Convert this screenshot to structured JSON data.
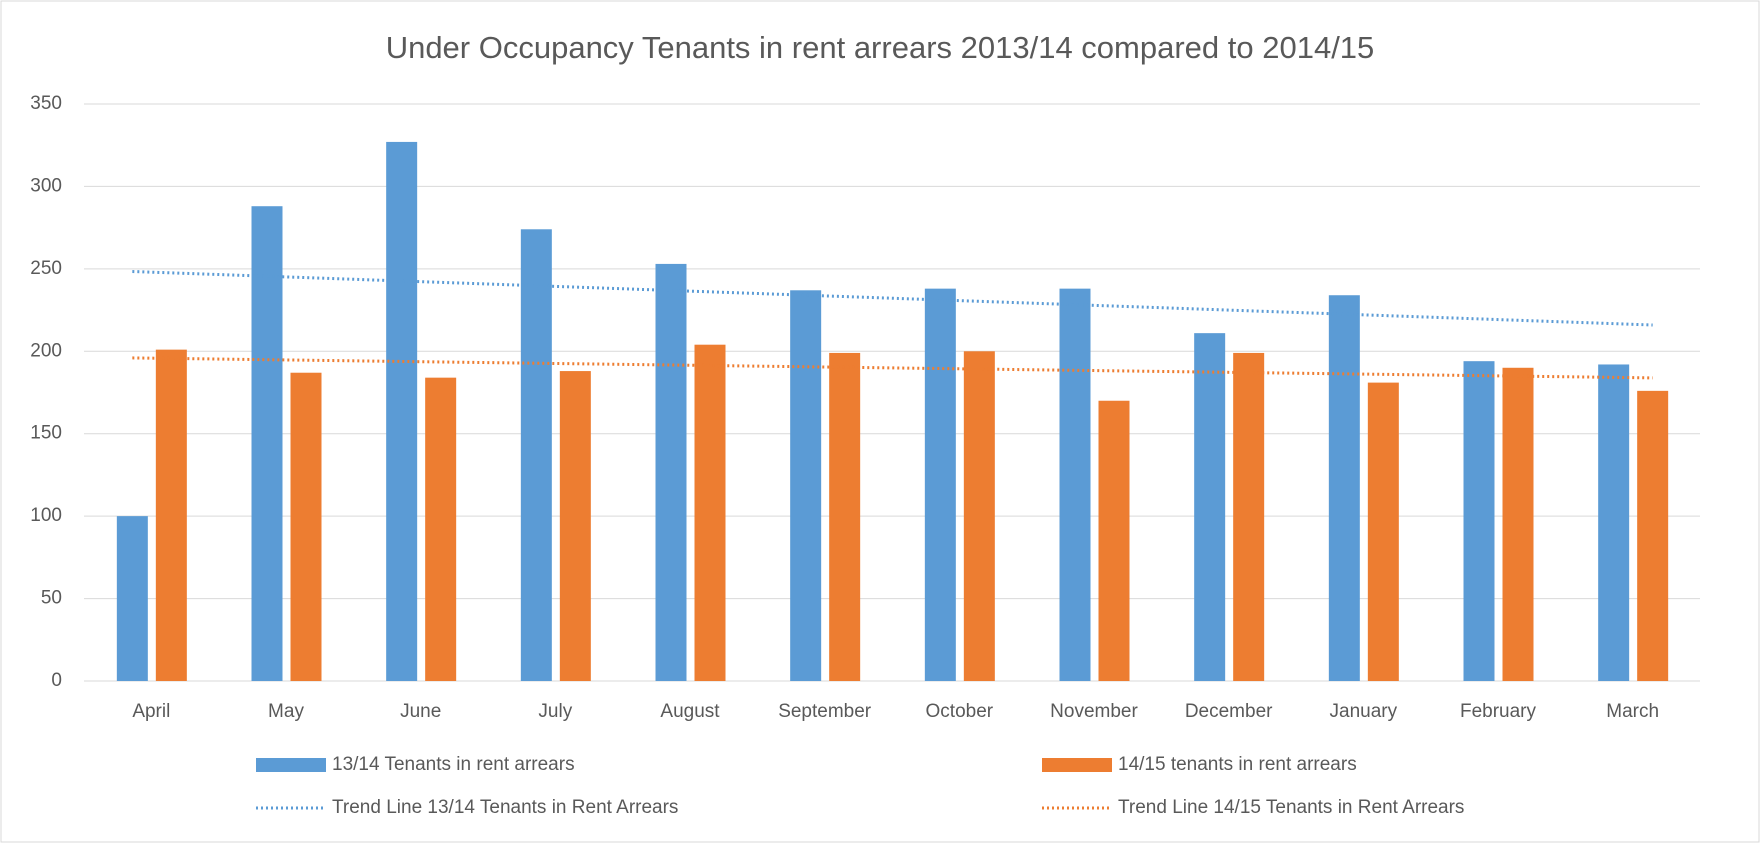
{
  "chart_data": {
    "type": "bar",
    "title": "Under Occupancy Tenants in rent arrears 2013/14 compared to 2014/15",
    "categories": [
      "April",
      "May",
      "June",
      "July",
      "August",
      "September",
      "October",
      "November",
      "December",
      "January",
      "February",
      "March"
    ],
    "series": [
      {
        "name": "13/14 Tenants in rent arrears",
        "color": "#5b9bd5",
        "values": [
          100,
          288,
          327,
          274,
          253,
          237,
          238,
          238,
          211,
          234,
          194,
          192
        ]
      },
      {
        "name": "14/15 tenants in rent arrears",
        "color": "#ed7d31",
        "values": [
          201,
          187,
          184,
          188,
          204,
          199,
          200,
          170,
          199,
          181,
          190,
          176
        ]
      }
    ],
    "trendlines": [
      {
        "name": "Trend Line 13/14 Tenants in Rent Arrears",
        "color": "#5b9bd5"
      },
      {
        "name": "Trend Line 14/15 Tenants in Rent Arrears",
        "color": "#ed7d31"
      }
    ],
    "ylim": [
      0,
      350
    ],
    "yticks": [
      0,
      50,
      100,
      150,
      200,
      250,
      300,
      350
    ],
    "grid": true
  }
}
